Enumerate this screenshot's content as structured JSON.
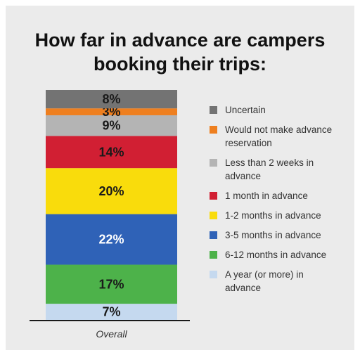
{
  "title_lines": [
    "How far in advance are campers",
    "booking their trips:"
  ],
  "chart_data": {
    "type": "bar",
    "stacked": true,
    "title": "How far in advance are campers booking their trips:",
    "categories": [
      "Overall"
    ],
    "unit": "%",
    "ylim": [
      0,
      100
    ],
    "series": [
      {
        "name": "A year (or more) in advance",
        "values": [
          7
        ],
        "label": "7%",
        "color": "#c5d9ef",
        "label_color": "#1a1a1a"
      },
      {
        "name": "6-12 months in advance",
        "values": [
          17
        ],
        "label": "17%",
        "color": "#4db24a",
        "label_color": "#1a1a1a"
      },
      {
        "name": "3-5 months in advance",
        "values": [
          22
        ],
        "label": "22%",
        "color": "#2f62b7",
        "label_color": "#ffffff"
      },
      {
        "name": "1-2 months in advance",
        "values": [
          20
        ],
        "label": "20%",
        "color": "#f9dc0c",
        "label_color": "#1a1a1a"
      },
      {
        "name": "1 month in advance",
        "values": [
          14
        ],
        "label": "14%",
        "color": "#d11f33",
        "label_color": "#1a1a1a"
      },
      {
        "name": "Less than 2 weeks in advance",
        "values": [
          9
        ],
        "label": "9%",
        "color": "#b4b4b4",
        "label_color": "#1a1a1a"
      },
      {
        "name": "Would not make advance reservation",
        "values": [
          3
        ],
        "label": "3%",
        "color": "#ee7f1f",
        "label_color": "#1a1a1a"
      },
      {
        "name": "Uncertain",
        "values": [
          8
        ],
        "label": "8%",
        "color": "#737373",
        "label_color": "#1a1a1a"
      }
    ],
    "legend": {
      "placement": "right",
      "entries": [
        {
          "text": "Uncertain",
          "color": "#737373"
        },
        {
          "text": "Would not make advance reservation",
          "color": "#ee7f1f"
        },
        {
          "text": "Less than 2 weeks in advance",
          "color": "#b4b4b4"
        },
        {
          "text": "1 month in advance",
          "color": "#d11f33"
        },
        {
          "text": "1-2 months in advance",
          "color": "#f9dc0c"
        },
        {
          "text": "3-5 months in advance",
          "color": "#2f62b7"
        },
        {
          "text": "6-12 months in advance",
          "color": "#4db24a"
        },
        {
          "text": "A year (or more) in advance",
          "color": "#c5d9ef"
        }
      ]
    }
  }
}
